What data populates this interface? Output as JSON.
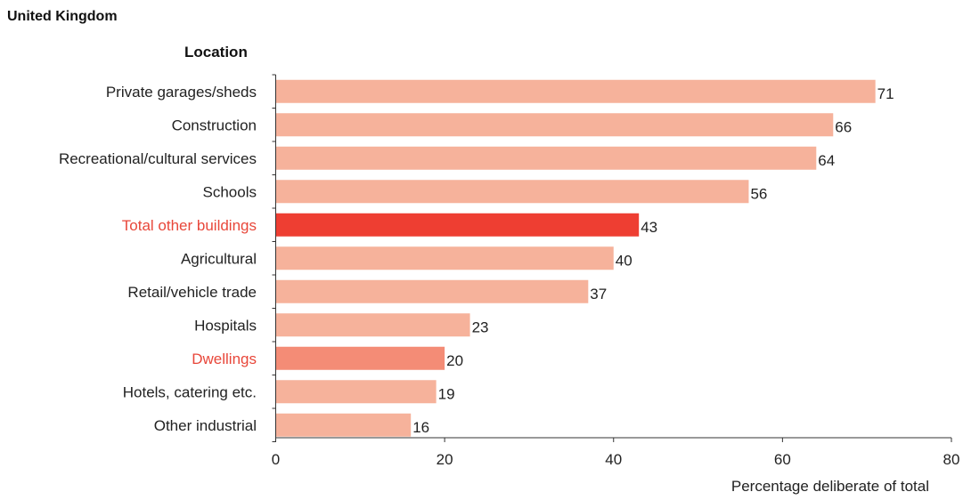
{
  "chart_data": {
    "type": "bar",
    "orientation": "horizontal",
    "title": "United Kingdom",
    "ylabel": "Location",
    "xlabel": "Percentage deliberate of total",
    "categories": [
      "Private garages/sheds",
      "Construction",
      "Recreational/cultural services",
      "Schools",
      "Total other buildings",
      "Agricultural",
      "Retail/vehicle trade",
      "Hospitals",
      "Dwellings",
      "Hotels, catering etc.",
      "Other industrial"
    ],
    "values": [
      71,
      66,
      64,
      56,
      43,
      40,
      37,
      23,
      20,
      19,
      16
    ],
    "highlighted": [
      "Total other buildings",
      "Dwellings"
    ],
    "xlim": [
      0,
      80
    ],
    "xticks": [
      0,
      20,
      40,
      60,
      80
    ],
    "grid": false,
    "colors": {
      "default_bar": "#f6b29b",
      "total_other_buildings_bar": "#ee3e32",
      "dwellings_bar": "#f48c76",
      "highlight_label": "#e8473a",
      "text": "#222222",
      "axis": "#333333"
    }
  }
}
